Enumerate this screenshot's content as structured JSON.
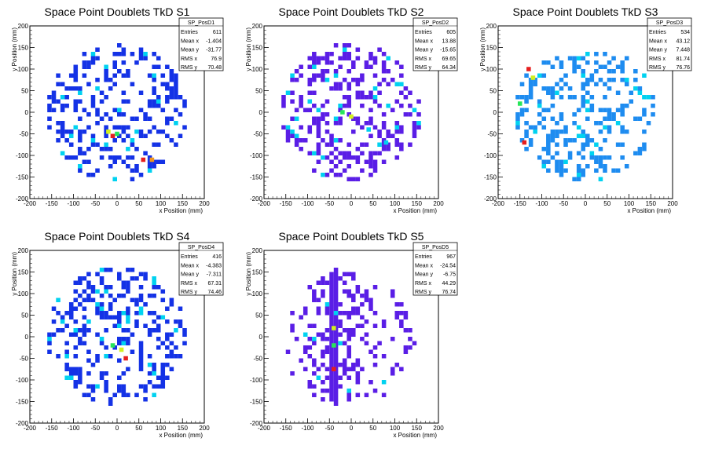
{
  "chart_data": [
    {
      "type": "heatmap",
      "title": "Space Point Doublets TkD S1",
      "xlabel": "x Position (mm)",
      "ylabel": "y Position (mm)",
      "xlim": [
        -200,
        200
      ],
      "ylim": [
        -200,
        200
      ],
      "ticks": [
        -200,
        -150,
        -100,
        -50,
        0,
        50,
        100,
        150,
        200
      ],
      "stats": {
        "name": "SP_PosD1",
        "rows": [
          [
            "Entries",
            "611"
          ],
          [
            "Mean x",
            "-1.404"
          ],
          [
            "Mean y",
            "-31.77"
          ],
          [
            "RMS x",
            "76.9"
          ],
          [
            "RMS y",
            "70.48"
          ]
        ]
      },
      "palette": "blue",
      "seed": 11,
      "hot": [
        {
          "x": -10,
          "y": -55,
          "c": "red"
        },
        {
          "x": 60,
          "y": -110,
          "c": "red"
        },
        {
          "x": 80,
          "y": -110,
          "c": "orange"
        },
        {
          "x": -20,
          "y": -45,
          "c": "yellow"
        },
        {
          "x": 0,
          "y": -50,
          "c": "green"
        }
      ]
    },
    {
      "type": "heatmap",
      "title": "Space Point Doublets TkD S2",
      "xlabel": "x Position (mm)",
      "ylabel": "y Position (mm)",
      "xlim": [
        -200,
        200
      ],
      "ylim": [
        -200,
        200
      ],
      "ticks": [
        -200,
        -150,
        -100,
        -50,
        0,
        50,
        100,
        150,
        200
      ],
      "stats": {
        "name": "SP_PosD2",
        "rows": [
          [
            "Entries",
            "605"
          ],
          [
            "Mean x",
            "13.88"
          ],
          [
            "Mean y",
            "-15.65"
          ],
          [
            "RMS x",
            "69.65"
          ],
          [
            "RMS y",
            "64.34"
          ]
        ]
      },
      "palette": "violet",
      "seed": 23,
      "hot": [
        {
          "x": 0,
          "y": -10,
          "c": "yellow"
        },
        {
          "x": -20,
          "y": 0,
          "c": "green"
        },
        {
          "x": 40,
          "y": -40,
          "c": "cyan"
        },
        {
          "x": 80,
          "y": -70,
          "c": "cyan"
        }
      ]
    },
    {
      "type": "heatmap",
      "title": "Space Point Doublets TkD S3",
      "xlabel": "x Position (mm)",
      "ylabel": "y Position (mm)",
      "xlim": [
        -200,
        200
      ],
      "ylim": [
        -200,
        200
      ],
      "ticks": [
        -200,
        -150,
        -100,
        -50,
        0,
        50,
        100,
        150,
        200
      ],
      "stats": {
        "name": "SP_PosD3",
        "rows": [
          [
            "Entries",
            "534"
          ],
          [
            "Mean x",
            "43.12"
          ],
          [
            "Mean y",
            "7.448"
          ],
          [
            "RMS x",
            "81.74"
          ],
          [
            "RMS y",
            "76.76"
          ]
        ]
      },
      "palette": "azure",
      "seed": 37,
      "hot": [
        {
          "x": -130,
          "y": 100,
          "c": "red"
        },
        {
          "x": -140,
          "y": -70,
          "c": "red"
        },
        {
          "x": -120,
          "y": 80,
          "c": "yellow"
        },
        {
          "x": -150,
          "y": 20,
          "c": "green"
        }
      ]
    },
    {
      "type": "heatmap",
      "title": "Space Point Doublets TkD S4",
      "xlabel": "x Position (mm)",
      "ylabel": "y Position (mm)",
      "xlim": [
        -200,
        200
      ],
      "ylim": [
        -200,
        200
      ],
      "ticks": [
        -200,
        -150,
        -100,
        -50,
        0,
        50,
        100,
        150,
        200
      ],
      "stats": {
        "name": "SP_PosD4",
        "rows": [
          [
            "Entries",
            "416"
          ],
          [
            "Mean x",
            "-4.383"
          ],
          [
            "Mean y",
            "-7.311"
          ],
          [
            "RMS x",
            "67.31"
          ],
          [
            "RMS y",
            "74.46"
          ]
        ]
      },
      "palette": "blue",
      "seed": 41,
      "hot": [
        {
          "x": 20,
          "y": -50,
          "c": "red"
        },
        {
          "x": -10,
          "y": -20,
          "c": "green"
        },
        {
          "x": 10,
          "y": -30,
          "c": "yellow"
        }
      ]
    },
    {
      "type": "heatmap",
      "title": "Space Point Doublets TkD S5",
      "xlabel": "x Position (mm)",
      "ylabel": "y Position (mm)",
      "xlim": [
        -200,
        200
      ],
      "ylim": [
        -200,
        200
      ],
      "ticks": [
        -200,
        -150,
        -100,
        -50,
        0,
        50,
        100,
        150,
        200
      ],
      "stats": {
        "name": "SP_PosD5",
        "rows": [
          [
            "Entries",
            "967"
          ],
          [
            "Mean x",
            "-24.54"
          ],
          [
            "Mean y",
            "-6.75"
          ],
          [
            "RMS x",
            "44.29"
          ],
          [
            "RMS y",
            "76.74"
          ]
        ]
      },
      "palette": "violet",
      "seed": 53,
      "column_x": -40,
      "hot": [
        {
          "x": -40,
          "y": -75,
          "c": "red"
        },
        {
          "x": -40,
          "y": 20,
          "c": "yellow"
        },
        {
          "x": -40,
          "y": -20,
          "c": "green"
        }
      ]
    }
  ],
  "colors": {
    "blue": "#1432e6",
    "violet": "#5a1ee6",
    "azure": "#1e8cf0",
    "cyan": "#00d2f0",
    "green": "#28e65a",
    "yellow": "#d2f01e",
    "orange": "#f0961e",
    "red": "#e61e1e"
  }
}
